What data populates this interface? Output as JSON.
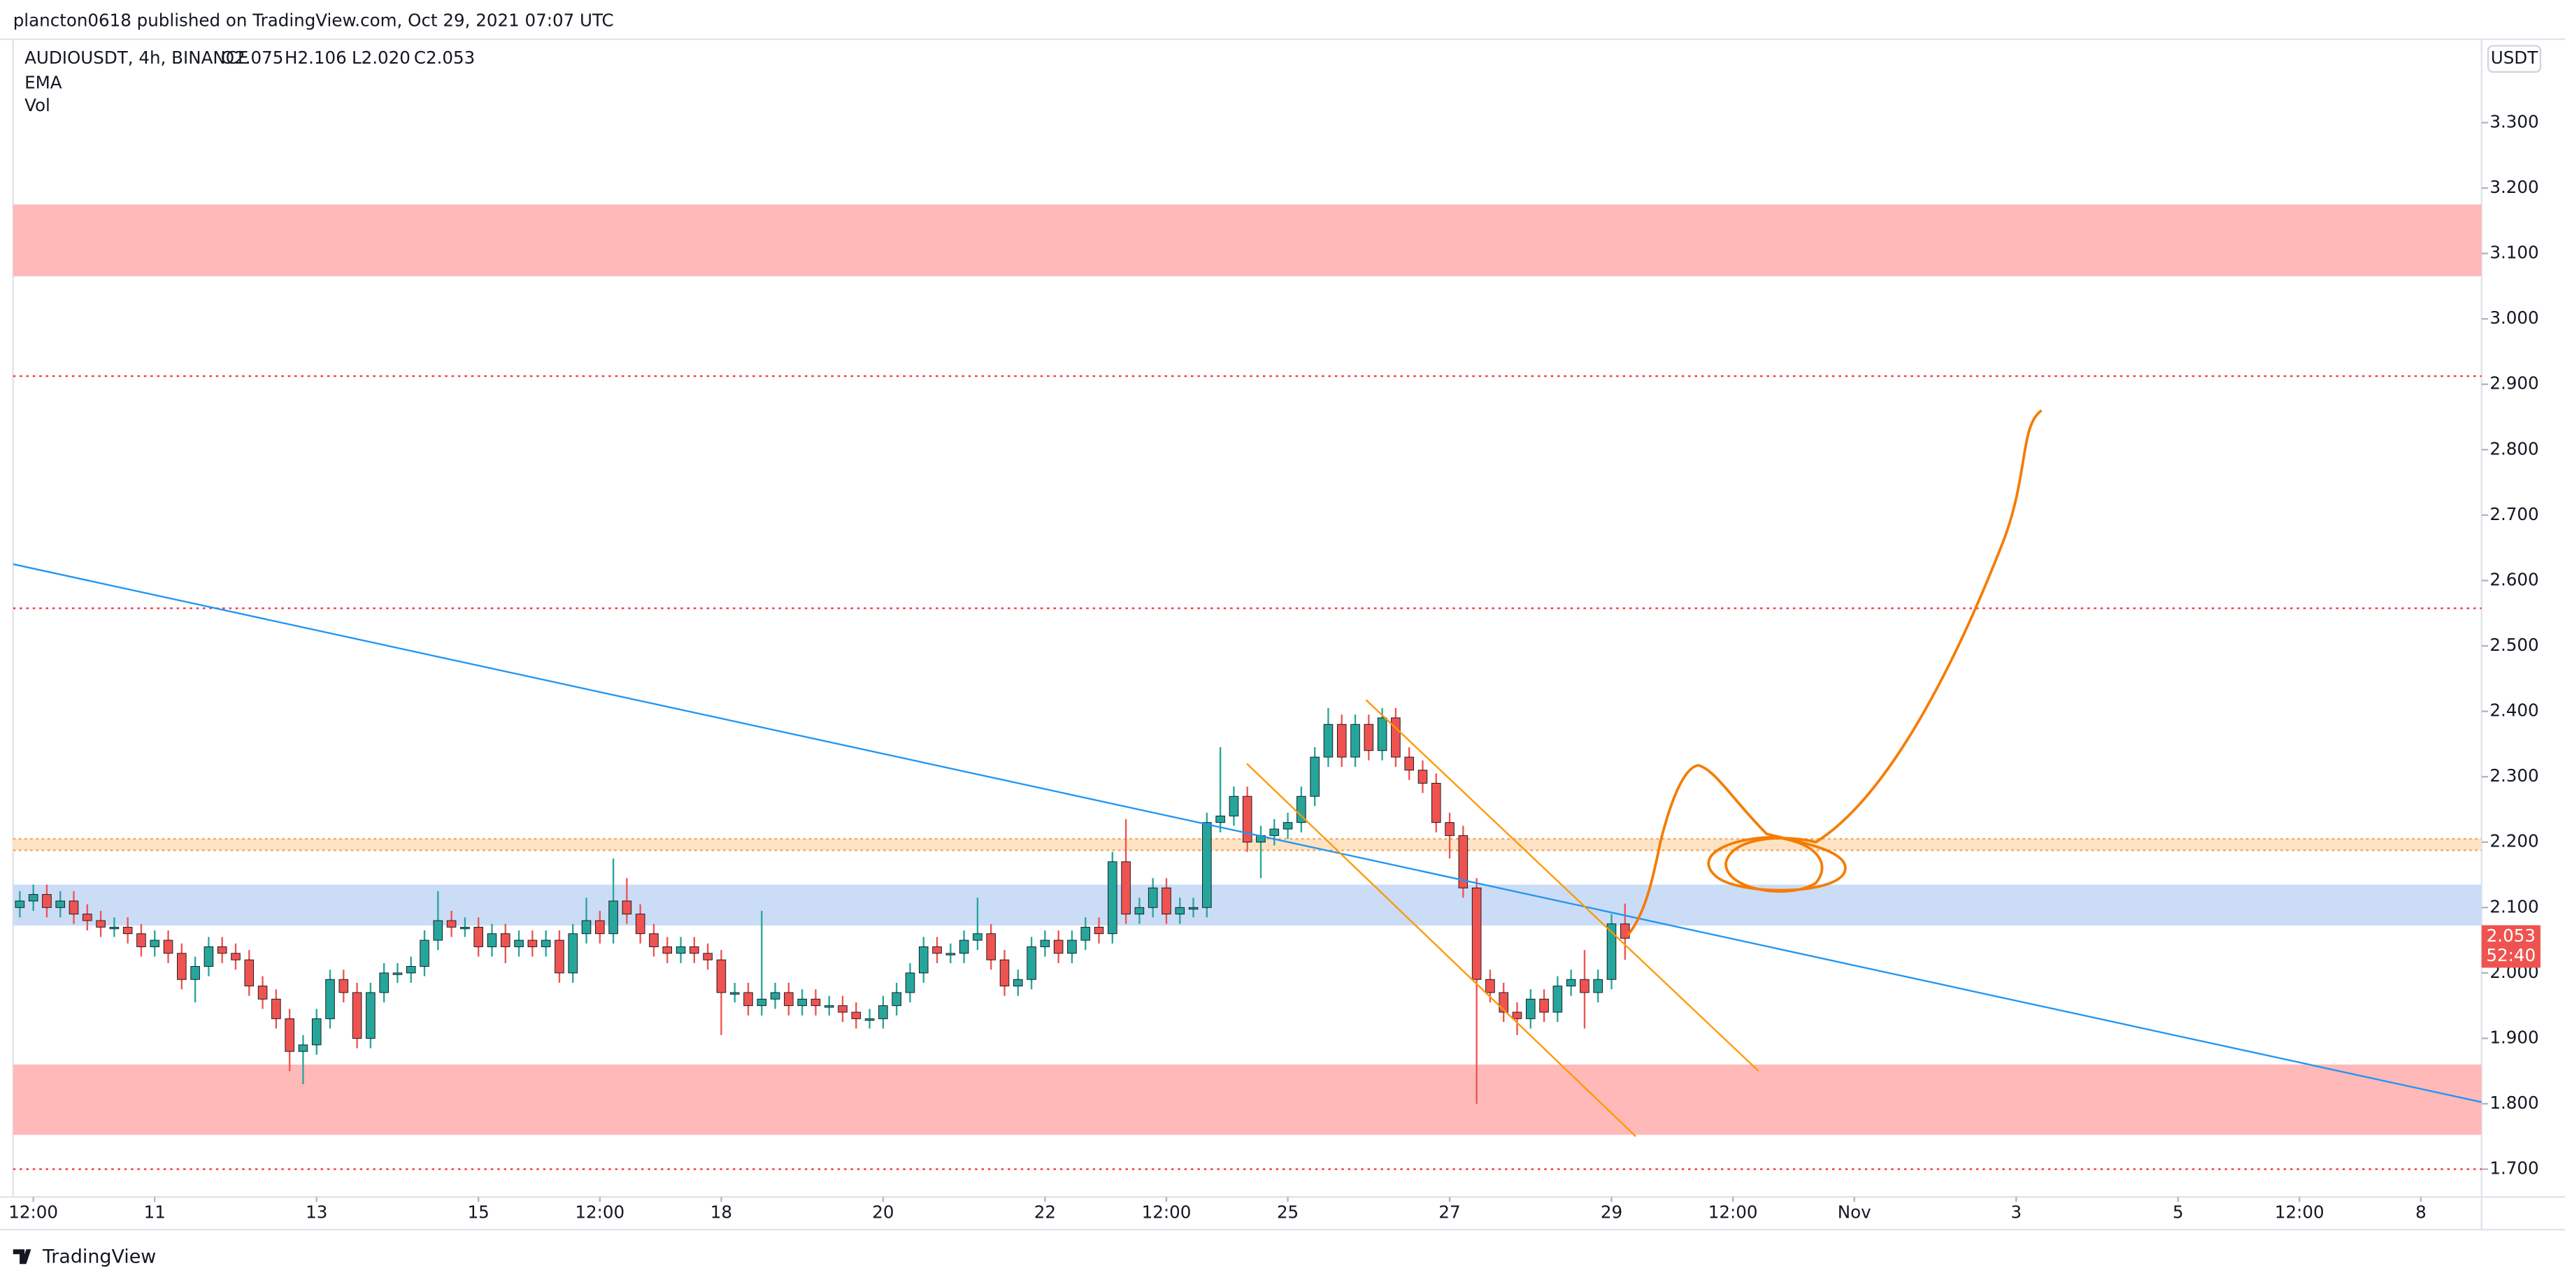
{
  "chart_data": {
    "type": "candlestick",
    "published": "plancton0618 published on TradingView.com, Oct 29, 2021 07:07 UTC",
    "title": "AUDIOUSDT, 4h, BINANCE",
    "ohlc_text": [
      "O2.075",
      "H2.106",
      "L2.020",
      "C2.053"
    ],
    "indicators": [
      "EMA",
      "Vol"
    ],
    "axis_unit": "USDT",
    "countdown": "52:40",
    "brand": "TradingView",
    "colors": {
      "up": "#26a69a",
      "down": "#ef5350"
    },
    "open": [
      2.1,
      2.11,
      2.12,
      2.1,
      2.11,
      2.09,
      2.08,
      2.07,
      2.07,
      2.06,
      2.04,
      2.05,
      2.03,
      1.99,
      2.01,
      2.04,
      2.03,
      2.02,
      1.98,
      1.96,
      1.93,
      1.88,
      1.89,
      1.93,
      1.99,
      1.97,
      1.9,
      1.97,
      2.0,
      2.0,
      2.01,
      2.05,
      2.08,
      2.07,
      2.07,
      2.04,
      2.06,
      2.04,
      2.05,
      2.04,
      2.05,
      2.0,
      2.06,
      2.08,
      2.06,
      2.11,
      2.09,
      2.06,
      2.04,
      2.03,
      2.04,
      2.03,
      2.02,
      1.97,
      1.97,
      1.95,
      1.96,
      1.97,
      1.95,
      1.96,
      1.95,
      1.95,
      1.94,
      1.93,
      1.93,
      1.95,
      1.97,
      2.0,
      2.04,
      2.03,
      2.03,
      2.05,
      2.06,
      2.02,
      1.98,
      1.99,
      2.04,
      2.05,
      2.03,
      2.05,
      2.07,
      2.06,
      2.17,
      2.09,
      2.1,
      2.13,
      2.09,
      2.1,
      2.1,
      2.23,
      2.24,
      2.27,
      2.2,
      2.21,
      2.22,
      2.23,
      2.27,
      2.33,
      2.38,
      2.33,
      2.38,
      2.34,
      2.39,
      2.33,
      2.31,
      2.29,
      2.23,
      2.21,
      2.13,
      1.99,
      1.97,
      1.94,
      1.93,
      1.96,
      1.94,
      1.98,
      1.99,
      1.97,
      1.99,
      2.075
    ],
    "high": [
      2.125,
      2.135,
      2.135,
      2.125,
      2.125,
      2.105,
      2.095,
      2.085,
      2.085,
      2.075,
      2.065,
      2.065,
      2.045,
      2.025,
      2.055,
      2.055,
      2.045,
      2.035,
      1.995,
      1.975,
      1.945,
      1.905,
      1.945,
      2.005,
      2.005,
      1.985,
      1.985,
      2.015,
      2.015,
      2.025,
      2.065,
      2.125,
      2.095,
      2.085,
      2.085,
      2.075,
      2.075,
      2.065,
      2.065,
      2.065,
      2.065,
      2.075,
      2.115,
      2.095,
      2.175,
      2.145,
      2.105,
      2.075,
      2.055,
      2.055,
      2.055,
      2.045,
      2.035,
      1.985,
      1.985,
      2.095,
      1.985,
      1.985,
      1.975,
      1.975,
      1.965,
      1.965,
      1.955,
      1.945,
      1.965,
      1.985,
      2.015,
      2.055,
      2.055,
      2.045,
      2.065,
      2.115,
      2.075,
      2.035,
      2.005,
      2.055,
      2.065,
      2.065,
      2.065,
      2.085,
      2.085,
      2.185,
      2.235,
      2.115,
      2.145,
      2.145,
      2.115,
      2.115,
      2.245,
      2.345,
      2.285,
      2.285,
      2.225,
      2.235,
      2.245,
      2.285,
      2.345,
      2.405,
      2.395,
      2.395,
      2.395,
      2.405,
      2.405,
      2.345,
      2.325,
      2.305,
      2.245,
      2.225,
      2.145,
      2.005,
      1.985,
      1.955,
      1.975,
      1.975,
      1.995,
      2.005,
      2.035,
      2.005,
      2.09,
      2.106
    ],
    "low": [
      2.085,
      2.095,
      2.085,
      2.085,
      2.075,
      2.065,
      2.055,
      2.055,
      2.045,
      2.025,
      2.025,
      2.015,
      1.975,
      1.955,
      1.995,
      2.015,
      2.005,
      1.965,
      1.945,
      1.915,
      1.85,
      1.83,
      1.875,
      1.915,
      1.955,
      1.885,
      1.885,
      1.955,
      1.985,
      1.985,
      1.995,
      2.035,
      2.055,
      2.055,
      2.025,
      2.025,
      2.015,
      2.025,
      2.025,
      2.025,
      1.985,
      1.985,
      2.045,
      2.045,
      2.045,
      2.075,
      2.045,
      2.025,
      2.015,
      2.015,
      2.015,
      2.005,
      1.905,
      1.955,
      1.935,
      1.935,
      1.945,
      1.935,
      1.935,
      1.935,
      1.935,
      1.925,
      1.915,
      1.915,
      1.915,
      1.935,
      1.955,
      1.985,
      2.015,
      2.015,
      2.015,
      2.035,
      2.005,
      1.965,
      1.965,
      1.975,
      2.025,
      2.015,
      2.015,
      2.035,
      2.045,
      2.045,
      2.075,
      2.075,
      2.085,
      2.075,
      2.075,
      2.085,
      2.085,
      2.215,
      2.225,
      2.185,
      2.145,
      2.195,
      2.205,
      2.215,
      2.255,
      2.315,
      2.315,
      2.315,
      2.325,
      2.325,
      2.315,
      2.295,
      2.275,
      2.215,
      2.175,
      2.115,
      1.8,
      1.955,
      1.925,
      1.905,
      1.915,
      1.925,
      1.925,
      1.965,
      1.915,
      1.955,
      1.975,
      2.02
    ],
    "close": [
      2.11,
      2.12,
      2.1,
      2.11,
      2.09,
      2.08,
      2.07,
      2.07,
      2.06,
      2.04,
      2.05,
      2.03,
      1.99,
      2.01,
      2.04,
      2.03,
      2.02,
      1.98,
      1.96,
      1.93,
      1.88,
      1.89,
      1.93,
      1.99,
      1.97,
      1.9,
      1.97,
      2.0,
      2.0,
      2.01,
      2.05,
      2.08,
      2.07,
      2.07,
      2.04,
      2.06,
      2.04,
      2.05,
      2.04,
      2.05,
      2.0,
      2.06,
      2.08,
      2.06,
      2.11,
      2.09,
      2.06,
      2.04,
      2.03,
      2.04,
      2.03,
      2.02,
      1.97,
      1.97,
      1.95,
      1.96,
      1.97,
      1.95,
      1.96,
      1.95,
      1.95,
      1.94,
      1.93,
      1.93,
      1.95,
      1.97,
      2.0,
      2.04,
      2.03,
      2.03,
      2.05,
      2.06,
      2.02,
      1.98,
      1.99,
      2.04,
      2.05,
      2.03,
      2.05,
      2.07,
      2.06,
      2.17,
      2.09,
      2.1,
      2.13,
      2.09,
      2.1,
      2.1,
      2.23,
      2.24,
      2.27,
      2.2,
      2.21,
      2.22,
      2.23,
      2.27,
      2.33,
      2.38,
      2.33,
      2.38,
      2.34,
      2.39,
      2.33,
      2.31,
      2.29,
      2.23,
      2.21,
      2.13,
      1.99,
      1.97,
      1.94,
      1.93,
      1.96,
      1.94,
      1.98,
      1.99,
      1.97,
      1.99,
      2.075,
      2.053
    ],
    "xlim": [
      -0.5,
      182.5
    ],
    "xticks": [
      {
        "value": 1,
        "label": "12:00"
      },
      {
        "value": 10,
        "label": "11"
      },
      {
        "value": 22,
        "label": "13"
      },
      {
        "value": 34,
        "label": "15"
      },
      {
        "value": 43,
        "label": "12:00"
      },
      {
        "value": 52,
        "label": "18"
      },
      {
        "value": 64,
        "label": "20"
      },
      {
        "value": 76,
        "label": "22"
      },
      {
        "value": 85,
        "label": "12:00"
      },
      {
        "value": 94,
        "label": "25"
      },
      {
        "value": 106,
        "label": "27"
      },
      {
        "value": 118,
        "label": "29"
      },
      {
        "value": 127,
        "label": "12:00"
      },
      {
        "value": 136,
        "label": "Nov"
      },
      {
        "value": 148,
        "label": "3"
      },
      {
        "value": 160,
        "label": "5"
      },
      {
        "value": 169,
        "label": "12:00"
      },
      {
        "value": 178,
        "label": "8"
      }
    ],
    "ylim": [
      1.6575,
      3.4275
    ],
    "yticks": [
      {
        "value": 1.7,
        "label": "1.700"
      },
      {
        "value": 1.8,
        "label": "1.800"
      },
      {
        "value": 1.9,
        "label": "1.900"
      },
      {
        "value": 2.0,
        "label": "2.000"
      },
      {
        "value": 2.1,
        "label": "2.100"
      },
      {
        "value": 2.2,
        "label": "2.200"
      },
      {
        "value": 2.3,
        "label": "2.300"
      },
      {
        "value": 2.4,
        "label": "2.400"
      },
      {
        "value": 2.5,
        "label": "2.500"
      },
      {
        "value": 2.6,
        "label": "2.600"
      },
      {
        "value": 2.7,
        "label": "2.700"
      },
      {
        "value": 2.8,
        "label": "2.800"
      },
      {
        "value": 2.9,
        "label": "2.900"
      },
      {
        "value": 3.0,
        "label": "3.000"
      },
      {
        "value": 3.1,
        "label": "3.100"
      },
      {
        "value": 3.2,
        "label": "3.200"
      },
      {
        "value": 3.3,
        "label": "3.300"
      }
    ],
    "zones": [
      {
        "from": 3.065,
        "to": 3.175,
        "color": "#ffb9b9"
      },
      {
        "from": 1.7525,
        "to": 1.86,
        "color": "#ffb9b9"
      },
      {
        "from": 2.0725,
        "to": 2.135,
        "color": "#cbdcf6"
      },
      {
        "from": 2.1875,
        "to": 2.205,
        "color": "#fde3c4"
      }
    ],
    "levels": [
      {
        "value": 2.9125,
        "color": "#f23645"
      },
      {
        "value": 2.5575,
        "color": "#f23645"
      },
      {
        "value": 1.7,
        "color": "#f23645"
      }
    ],
    "trendlines": [
      {
        "x": [
          -0.5,
          182.5
        ],
        "y": [
          2.625,
          1.8025
        ],
        "color": "#2196f3"
      },
      {
        "x": [
          99.8,
          128.9
        ],
        "y": [
          2.4175,
          1.85
        ],
        "color": "#ff9800"
      },
      {
        "x": [
          90.96,
          119.8
        ],
        "y": [
          2.32,
          1.75
        ],
        "color": "#ff9800"
      }
    ]
  }
}
